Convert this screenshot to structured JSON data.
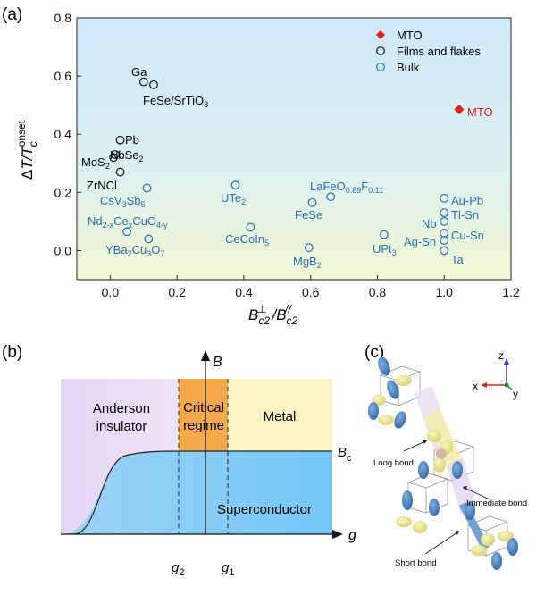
{
  "panels": {
    "a": {
      "label": "(a)"
    },
    "b": {
      "label": "(b)",
      "y_axis": "B",
      "x_axis": "g",
      "ticks": {
        "g2": "g",
        "g2_sub": "2",
        "g1": "g",
        "g1_sub": "1"
      },
      "regions": {
        "anderson_1": "Anderson",
        "anderson_2": "insulator",
        "critical_1": "Critical",
        "critical_2": "regime",
        "metal": "Metal",
        "superconductor": "Superconductor"
      },
      "bc_label": "B",
      "bc_sub": "c",
      "colors": {
        "anderson": "#ead9f6",
        "critical": "#f5a94a",
        "metal": "#faf3c4",
        "superconductor": "#7ec8f2"
      }
    },
    "c": {
      "label": "(c)",
      "axes": {
        "z": "z",
        "x": "x",
        "y": "y"
      },
      "bonds": {
        "long": "Long bond",
        "immediate": "Immediate bond",
        "short": "Short bond"
      }
    }
  },
  "chart_data": {
    "type": "scatter",
    "xlim": [
      -0.1,
      1.2
    ],
    "ylim": [
      -0.1,
      0.8
    ],
    "xticks": [
      0.0,
      0.2,
      0.4,
      0.6,
      0.8,
      1.0,
      1.2
    ],
    "yticks": [
      0.0,
      0.2,
      0.4,
      0.6,
      0.8
    ],
    "xtick_labels": [
      "0.0",
      "0.2",
      "0.4",
      "0.6",
      "0.8",
      "1.0",
      "1.2"
    ],
    "ytick_labels": [
      "0.0",
      "0.2",
      "0.4",
      "0.6",
      "0.8"
    ],
    "xlabel": {
      "main": "B",
      "sub1": "c2",
      "sup1": "⊥",
      "slash": "/B",
      "sub2": "c2",
      "sup2": "//"
    },
    "ylabel": {
      "delta": "Δ",
      "t1": "T/T",
      "sub": "c",
      "sup": "onset"
    },
    "legend": {
      "placement": "top-right",
      "entries": [
        {
          "name": "MTO",
          "marker": "diamond",
          "color": "#e0201b"
        },
        {
          "name": "Films and flakes",
          "marker": "circle-open",
          "color": "#111111"
        },
        {
          "name": "Bulk",
          "marker": "circle-open",
          "color": "#2b6cb0"
        }
      ]
    },
    "series": [
      {
        "name": "MTO",
        "color": "#e0201b",
        "points": [
          {
            "x": 1.045,
            "y": 0.485,
            "label": "MTO"
          }
        ]
      },
      {
        "name": "Films and flakes",
        "color": "#111111",
        "points": [
          {
            "x": 0.1,
            "y": 0.58,
            "label": "Ga"
          },
          {
            "x": 0.13,
            "y": 0.57,
            "label": "FeSe/SrTiO3"
          },
          {
            "x": 0.03,
            "y": 0.38,
            "label": "Pb"
          },
          {
            "x": 0.015,
            "y": 0.33,
            "label": "NbSe2"
          },
          {
            "x": 0.01,
            "y": 0.32,
            "label": "MoS2"
          },
          {
            "x": 0.03,
            "y": 0.27,
            "label": "ZrNCl"
          }
        ]
      },
      {
        "name": "Bulk",
        "color": "#2b6cb0",
        "points": [
          {
            "x": 0.11,
            "y": 0.215,
            "label": "CsV3Sb5"
          },
          {
            "x": 0.05,
            "y": 0.065,
            "label": "Nd2-xCexCuO4-y"
          },
          {
            "x": 0.115,
            "y": 0.04,
            "label": "YBa2Cu3O7"
          },
          {
            "x": 0.375,
            "y": 0.225,
            "label": "UTe2"
          },
          {
            "x": 0.42,
            "y": 0.08,
            "label": "CeCoIn5"
          },
          {
            "x": 0.595,
            "y": 0.01,
            "label": "MgB2"
          },
          {
            "x": 0.605,
            "y": 0.165,
            "label": "FeSe"
          },
          {
            "x": 0.66,
            "y": 0.185,
            "label": "LaFeO0.89F0.11"
          },
          {
            "x": 0.82,
            "y": 0.055,
            "label": "UPt3"
          },
          {
            "x": 1.0,
            "y": 0.18,
            "label": "Au-Pb"
          },
          {
            "x": 1.0,
            "y": 0.13,
            "label": "Tl-Sn"
          },
          {
            "x": 1.0,
            "y": 0.1,
            "label": "Nb"
          },
          {
            "x": 1.0,
            "y": 0.06,
            "label": "Cu-Sn"
          },
          {
            "x": 1.0,
            "y": 0.035,
            "label": "Ag-Sn"
          },
          {
            "x": 1.0,
            "y": 0.0,
            "label": "Ta"
          }
        ]
      }
    ]
  }
}
